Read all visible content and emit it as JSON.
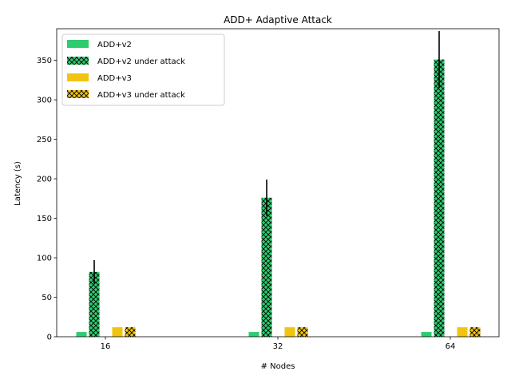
{
  "chart_data": {
    "type": "bar",
    "title": "ADD+ Adaptive Attack",
    "xlabel": "# Nodes",
    "ylabel": "Latency (s)",
    "categories": [
      "16",
      "32",
      "64"
    ],
    "ylim": [
      0,
      390
    ],
    "yticks": [
      0,
      50,
      100,
      150,
      200,
      250,
      300,
      350
    ],
    "legend_position": "top-left",
    "series": [
      {
        "name": "ADD+v2",
        "values": [
          6,
          6,
          6
        ],
        "errors": [
          0,
          0,
          0
        ],
        "color": "#2ecc71",
        "hatch": false
      },
      {
        "name": "ADD+v2 under attack",
        "values": [
          82,
          176,
          351
        ],
        "errors": [
          15,
          23,
          36
        ],
        "color": "#2ecc71",
        "hatch": true
      },
      {
        "name": "ADD+v3",
        "values": [
          12,
          12,
          12
        ],
        "errors": [
          0,
          0,
          0
        ],
        "color": "#f1c40f",
        "hatch": false
      },
      {
        "name": "ADD+v3 under attack",
        "values": [
          12,
          12,
          12
        ],
        "errors": [
          0,
          0,
          0
        ],
        "color": "#f1c40f",
        "hatch": true
      }
    ]
  }
}
